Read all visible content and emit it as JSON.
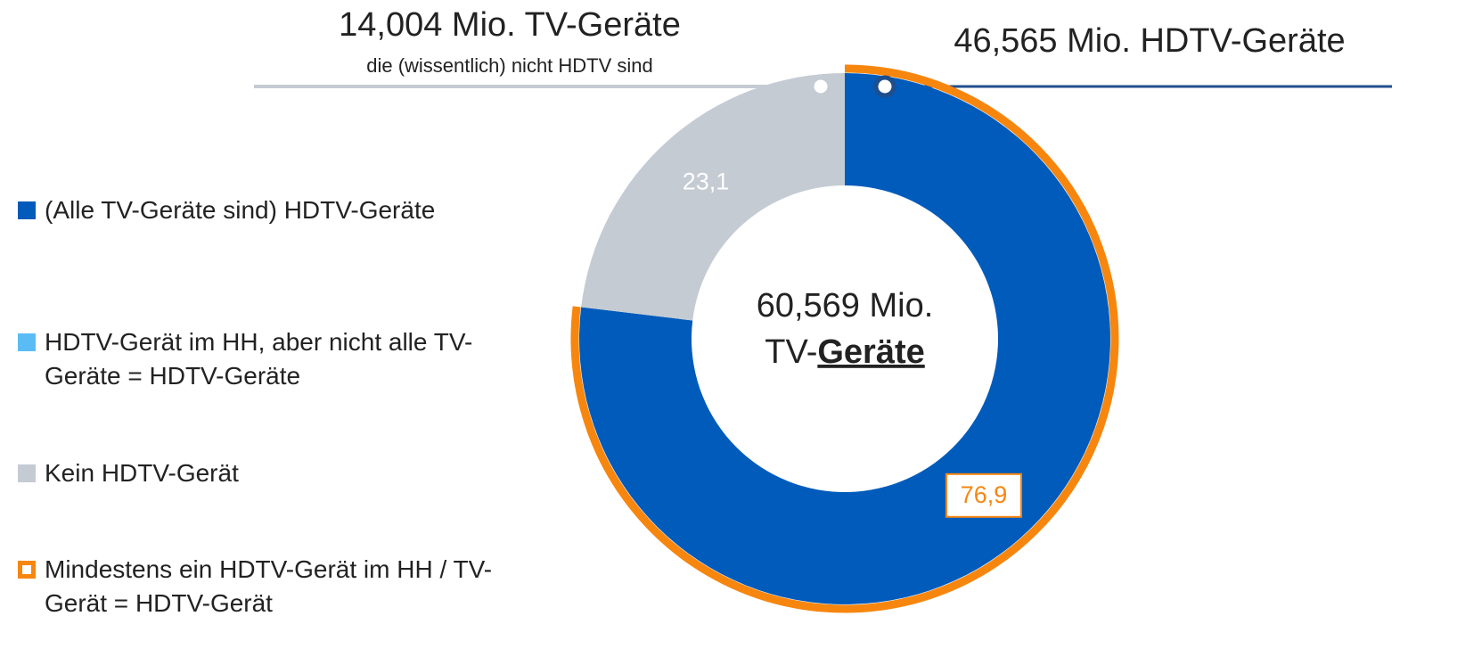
{
  "chart_data": {
    "type": "pie",
    "categories": [
      "(Alle TV-Geräte sind) HDTV-Geräte",
      "HDTV-Gerät im HH, aber nicht alle TV-Geräte = HDTV-Geräte",
      "Kein HDTV-Gerät"
    ],
    "colors": [
      "#005bbb",
      "#5bbcf5",
      "#c5cbd3"
    ],
    "values": [
      76.9,
      0,
      23.1
    ],
    "value_labels": [
      "76,9",
      null,
      "23,1"
    ],
    "outline": {
      "name": "Mindestens ein HDTV-Gerät im HH / TV-Gerät = HDTV-Gerät",
      "color": "#f7860f",
      "value": 76.9
    },
    "center_text": {
      "line1": "60,569 Mio.",
      "line2_prefix": "TV-",
      "line2_emphasis": "Geräte"
    },
    "annotations": [
      "14,004 Mio. TV-Geräte",
      "die (wissentlich) nicht HDTV sind",
      "46,565 Mio. HDTV-Geräte"
    ]
  }
}
